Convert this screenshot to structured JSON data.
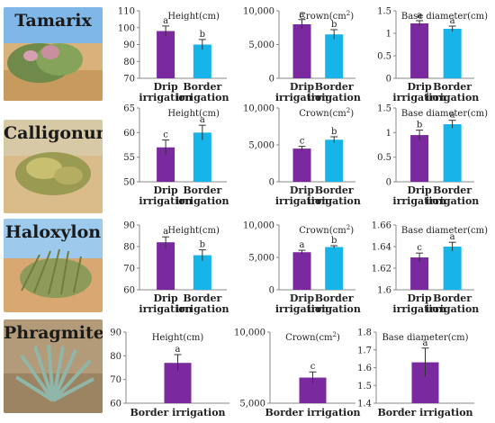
{
  "colors": {
    "drip": "#7a2a9e",
    "border": "#16b4e8",
    "border_single": "#7a2a9e",
    "axis": "#888888"
  },
  "rows": [
    {
      "plant": "Tamarix",
      "photo_icon": "tamarix-shrub-photo",
      "charts": [
        {
          "title": "Height(cm)",
          "sup": "",
          "kind": "height"
        },
        {
          "title": "Crown(cm",
          "sup": "2",
          "kind": "crown"
        },
        {
          "title": "Base diameter(cm)",
          "sup": "",
          "kind": "diameter"
        }
      ]
    },
    {
      "plant": "Calligonum",
      "photo_icon": "calligonum-shrub-photo",
      "charts": [
        {
          "title": "Height(cm)",
          "sup": "",
          "kind": "height"
        },
        {
          "title": "Crown(cm",
          "sup": "2",
          "kind": "crown"
        },
        {
          "title": "Base diameter(cm)",
          "sup": "",
          "kind": "diameter"
        }
      ]
    },
    {
      "plant": "Haloxylon",
      "photo_icon": "haloxylon-grass-photo",
      "charts": [
        {
          "title": "Height(cm)",
          "sup": "",
          "kind": "height"
        },
        {
          "title": "Crown(cm",
          "sup": "2",
          "kind": "crown"
        },
        {
          "title": "Base diameter(cm)",
          "sup": "",
          "kind": "diameter"
        }
      ]
    },
    {
      "plant": "Phragmites",
      "photo_icon": "phragmites-grass-photo",
      "charts": [
        {
          "title": "Height(cm)",
          "sup": "",
          "kind": "height"
        },
        {
          "title": "Crown(cm",
          "sup": "2",
          "kind": "crown"
        },
        {
          "title": "Base diameter(cm)",
          "sup": "",
          "kind": "diameter"
        }
      ]
    }
  ],
  "chart_data": [
    {
      "type": "bar",
      "plant": "Tamarix",
      "title": "Height(cm)",
      "categories": [
        "Drip irrigation",
        "Border irrigation"
      ],
      "values": [
        98,
        90
      ],
      "errors": [
        3,
        3
      ],
      "letters": [
        "a",
        "b"
      ],
      "ylim": [
        70,
        110
      ],
      "yticks": [
        "70",
        "80",
        "90",
        "100",
        "110"
      ]
    },
    {
      "type": "bar",
      "plant": "Tamarix",
      "title": "Crown(cm²)",
      "categories": [
        "Drip irrigation",
        "Border irrigation"
      ],
      "values": [
        8000,
        6500
      ],
      "errors": [
        700,
        700
      ],
      "letters": [
        "a",
        "b"
      ],
      "ylim": [
        0,
        10000
      ],
      "yticks": [
        "0",
        "5,000",
        "10,000"
      ]
    },
    {
      "type": "bar",
      "plant": "Tamarix",
      "title": "Base diameter(cm)",
      "categories": [
        "Drip irrigation",
        "Border irrigation"
      ],
      "values": [
        1.22,
        1.1
      ],
      "errors": [
        0.06,
        0.06
      ],
      "letters": [
        "a",
        "a"
      ],
      "ylim": [
        0,
        1.5
      ],
      "yticks": [
        "0",
        "0.5",
        "1",
        "1.5"
      ]
    },
    {
      "type": "bar",
      "plant": "Calligonum",
      "title": "Height(cm)",
      "categories": [
        "Drip irrigation",
        "Border irrigation"
      ],
      "values": [
        57,
        60
      ],
      "errors": [
        1.5,
        1.5
      ],
      "letters": [
        "c",
        "a"
      ],
      "ylim": [
        50,
        65
      ],
      "yticks": [
        "50",
        "55",
        "60",
        "65"
      ]
    },
    {
      "type": "bar",
      "plant": "Calligonum",
      "title": "Crown(cm²)",
      "categories": [
        "Drip irrigation",
        "Border irrigation"
      ],
      "values": [
        4500,
        5700
      ],
      "errors": [
        300,
        400
      ],
      "letters": [
        "c",
        "b"
      ],
      "ylim": [
        0,
        10000
      ],
      "yticks": [
        "0",
        "5,000",
        "10,000"
      ]
    },
    {
      "type": "bar",
      "plant": "Calligonum",
      "title": "Base diameter(cm)",
      "categories": [
        "Drip irrigation",
        "Border irrigation"
      ],
      "values": [
        0.95,
        1.17
      ],
      "errors": [
        0.1,
        0.08
      ],
      "letters": [
        "b",
        "a"
      ],
      "ylim": [
        0,
        1.5
      ],
      "yticks": [
        "0",
        "0.5",
        "1",
        "1.5"
      ]
    },
    {
      "type": "bar",
      "plant": "Haloxylon",
      "title": "Height(cm)",
      "categories": [
        "Drip irrigation",
        "Border irrigation"
      ],
      "values": [
        82,
        76
      ],
      "errors": [
        2.5,
        2.5
      ],
      "letters": [
        "a",
        "b"
      ],
      "ylim": [
        60,
        90
      ],
      "yticks": [
        "60",
        "70",
        "80",
        "90"
      ]
    },
    {
      "type": "bar",
      "plant": "Haloxylon",
      "title": "Crown(cm²)",
      "categories": [
        "Drip irrigation",
        "Border irrigation"
      ],
      "values": [
        5800,
        6600
      ],
      "errors": [
        300,
        200
      ],
      "letters": [
        "a",
        "b"
      ],
      "ylim": [
        0,
        10000
      ],
      "yticks": [
        "0",
        "5,000",
        "10,000"
      ]
    },
    {
      "type": "bar",
      "plant": "Haloxylon",
      "title": "Base diameter(cm)",
      "categories": [
        "Drip irrigation",
        "Border irrigation"
      ],
      "values": [
        1.63,
        1.64
      ],
      "errors": [
        0.004,
        0.004
      ],
      "letters": [
        "c",
        "a"
      ],
      "ylim": [
        1.6,
        1.66
      ],
      "yticks": [
        "1.6",
        "1.62",
        "1.64",
        "1.66"
      ]
    },
    {
      "type": "bar",
      "plant": "Phragmites",
      "title": "Height(cm)",
      "categories": [
        "Border irrigation"
      ],
      "values": [
        77
      ],
      "errors": [
        3.5
      ],
      "letters": [
        "a"
      ],
      "ylim": [
        60,
        90
      ],
      "yticks": [
        "60",
        "70",
        "80",
        "90"
      ]
    },
    {
      "type": "bar",
      "plant": "Phragmites",
      "title": "Crown(cm²)",
      "categories": [
        "Border irrigation"
      ],
      "values": [
        6800
      ],
      "errors": [
        400
      ],
      "letters": [
        "c"
      ],
      "ylim": [
        5000,
        10000
      ],
      "yticks": [
        "5,000",
        "10,000"
      ]
    },
    {
      "type": "bar",
      "plant": "Phragmites",
      "title": "Base diameter(cm)",
      "categories": [
        "Border irrigation"
      ],
      "values": [
        1.63
      ],
      "errors": [
        0.08
      ],
      "letters": [
        "a"
      ],
      "ylim": [
        1.4,
        1.8
      ],
      "yticks": [
        "1.4",
        "1.5",
        "1.6",
        "1.7",
        "1.8"
      ]
    }
  ]
}
